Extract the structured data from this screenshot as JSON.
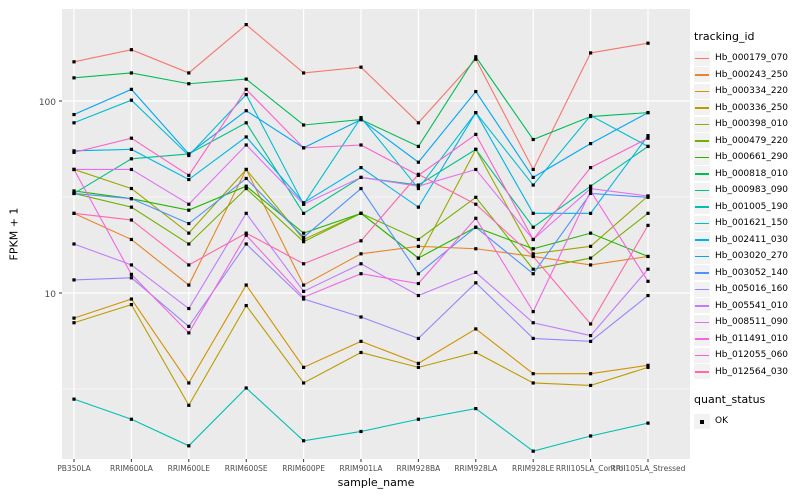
{
  "colors": {
    "panel_bg": "#EBEBEB",
    "gridline": "#FFFFFF",
    "legend_key_bg": "#F2F2F2",
    "axis_text": "#4D4D4D",
    "axis_title": "#000000",
    "marker": "#000000"
  },
  "chart_data": {
    "type": "line",
    "title": "",
    "xlabel": "sample_name",
    "ylabel": "FPKM + 1",
    "y_scale": "log10",
    "y_ticks": [
      100,
      10
    ],
    "y_tick_labels": [
      "100",
      "10"
    ],
    "ylim": [
      1.4,
      305
    ],
    "grid": true,
    "legend_position": "right",
    "legend": {
      "title": "tracking_id"
    },
    "legend2": {
      "title": "quant_status",
      "items": [
        "OK"
      ]
    },
    "marker": {
      "shape": "square",
      "color": "#000000"
    },
    "categories": [
      "PB350LA",
      "RRIM600LA",
      "RRIM600LE",
      "RRIM600SE",
      "RRIM600PE",
      "RRIM901LA",
      "RRIM928BA",
      "RRIM928LA",
      "RRIM928LE",
      "RRII105LA_Control",
      "RRII105LA_Stressed"
    ],
    "series": [
      {
        "name": "Hb_000179_070",
        "color": "#F8766D",
        "values": [
          160,
          185,
          140,
          250,
          140,
          150,
          77,
          165,
          44,
          178,
          200
        ]
      },
      {
        "name": "Hb_000243_250",
        "color": "#E88526",
        "values": [
          26,
          19,
          11,
          44,
          11,
          16,
          17.5,
          17,
          15.5,
          14,
          15.5
        ]
      },
      {
        "name": "Hb_000334_220",
        "color": "#D39200",
        "values": [
          7.4,
          9.3,
          3.4,
          11,
          4.1,
          5.6,
          4.3,
          6.5,
          3.8,
          3.8,
          4.2
        ]
      },
      {
        "name": "Hb_000336_250",
        "color": "#BB9D00",
        "values": [
          7.0,
          8.7,
          2.6,
          8.6,
          3.4,
          4.9,
          4.1,
          4.9,
          3.4,
          3.3,
          4.1
        ]
      },
      {
        "name": "Hb_000398_010",
        "color": "#9CA700",
        "values": [
          44,
          35,
          20.5,
          44,
          19,
          26,
          15.2,
          56,
          16,
          17.5,
          32
        ]
      },
      {
        "name": "Hb_000479_220",
        "color": "#72B000",
        "values": [
          33,
          28,
          18,
          35,
          18.5,
          26,
          19,
          31.5,
          13.3,
          15.2,
          26
        ]
      },
      {
        "name": "Hb_000661_290",
        "color": "#24B700",
        "values": [
          34,
          31,
          27,
          36,
          20.5,
          26,
          15.2,
          22,
          17,
          20.5,
          15.5
        ]
      },
      {
        "name": "Hb_000818_010",
        "color": "#00BC56",
        "values": [
          132,
          140,
          123,
          130,
          75,
          80,
          58,
          170,
          63,
          83,
          87
        ]
      },
      {
        "name": "Hb_000983_090",
        "color": "#00C08B",
        "values": [
          33,
          50,
          53,
          77,
          26,
          40,
          36.5,
          56,
          22,
          36,
          58
        ]
      },
      {
        "name": "Hb_001005_190",
        "color": "#00C0B4",
        "values": [
          2.8,
          2.2,
          1.6,
          3.2,
          1.7,
          1.9,
          2.2,
          2.5,
          1.5,
          1.8,
          2.1
        ]
      },
      {
        "name": "Hb_001621_150",
        "color": "#00BDD2",
        "values": [
          77,
          101,
          52,
          108,
          29,
          82,
          35,
          87,
          36.5,
          84,
          58
        ]
      },
      {
        "name": "Hb_002411_030",
        "color": "#00B4E9",
        "values": [
          55,
          56,
          39,
          65,
          29.5,
          45,
          28,
          87,
          26,
          26,
          66
        ]
      },
      {
        "name": "Hb_003020_270",
        "color": "#00A5F8",
        "values": [
          85,
          115,
          53,
          89,
          57,
          80,
          48,
          112,
          40,
          60,
          87
        ]
      },
      {
        "name": "Hb_003052_140",
        "color": "#4F91FF",
        "values": [
          33,
          31,
          23,
          39.5,
          19.5,
          35,
          12.6,
          22,
          12.6,
          33,
          31.5
        ]
      },
      {
        "name": "Hb_005016_160",
        "color": "#9687FF",
        "values": [
          11.7,
          12,
          6.7,
          18,
          9.3,
          7.5,
          5.8,
          11.3,
          5.8,
          5.6,
          9.7
        ]
      },
      {
        "name": "Hb_005541_010",
        "color": "#C27BFF",
        "values": [
          18,
          14,
          8.3,
          26,
          10.2,
          14.2,
          9.7,
          12.8,
          7.0,
          6.0,
          13.3
        ]
      },
      {
        "name": "Hb_008511_090",
        "color": "#E26EF7",
        "values": [
          44,
          44,
          29,
          59,
          29,
          40,
          36,
          44,
          19,
          35,
          32
        ]
      },
      {
        "name": "Hb_011491_010",
        "color": "#F266E4",
        "values": [
          44,
          12.5,
          6.2,
          20,
          9.5,
          12.6,
          11.2,
          24.5,
          8.0,
          34,
          11.5
        ]
      },
      {
        "name": "Hb_012055_060",
        "color": "#FC61CA",
        "values": [
          54,
          64,
          41,
          115,
          57,
          59,
          41,
          67,
          19,
          45,
          64
        ]
      },
      {
        "name": "Hb_012564_030",
        "color": "#FF67AB",
        "values": [
          26,
          24,
          14,
          20.5,
          14.2,
          18.7,
          41.5,
          29,
          15.5,
          6.9,
          22.5
        ]
      }
    ]
  }
}
